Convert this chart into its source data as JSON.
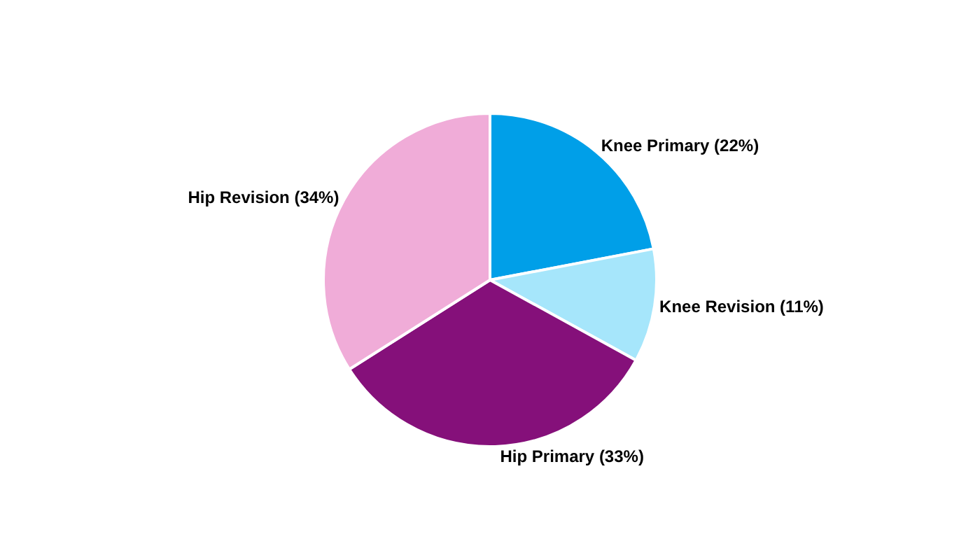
{
  "chart_data": {
    "type": "pie",
    "categories": [
      "Knee Primary (22%)",
      "Knee Revision (11%)",
      "Hip Primary (33%)",
      "Hip Revision (34%)"
    ],
    "values": [
      22,
      11,
      33,
      34
    ],
    "colors": [
      "#009fe8",
      "#a6e6fb",
      "#85107a",
      "#f0acd8"
    ],
    "legend": false
  }
}
